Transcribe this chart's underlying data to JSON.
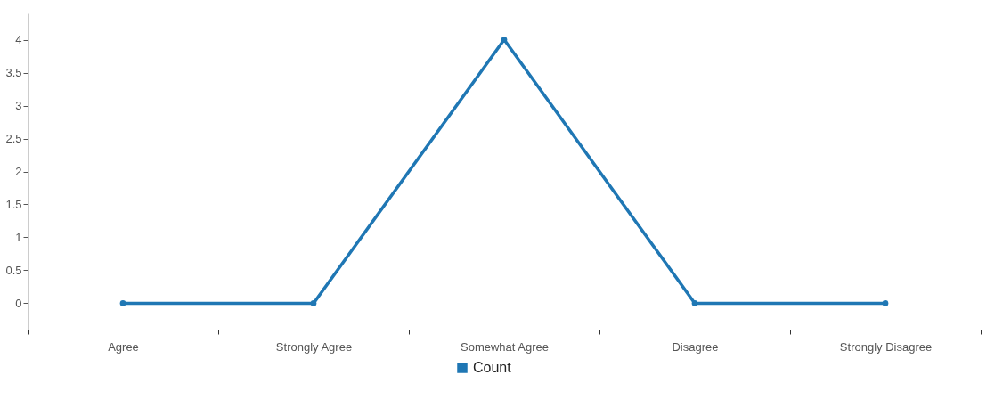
{
  "chart_data": {
    "type": "line",
    "categories": [
      "Agree",
      "Strongly Agree",
      "Somewhat Agree",
      "Disagree",
      "Strongly Disagree"
    ],
    "series": [
      {
        "name": "Count",
        "color": "#1f77b4",
        "values": [
          0,
          0,
          4,
          0,
          0
        ]
      }
    ],
    "ylim": [
      -0.4,
      4.4
    ],
    "yticks": [
      0,
      0.5,
      1,
      1.5,
      2,
      2.5,
      3,
      3.5,
      4
    ],
    "grid": false,
    "legend": "bottom",
    "marker": "circle",
    "line_style": "solid"
  }
}
